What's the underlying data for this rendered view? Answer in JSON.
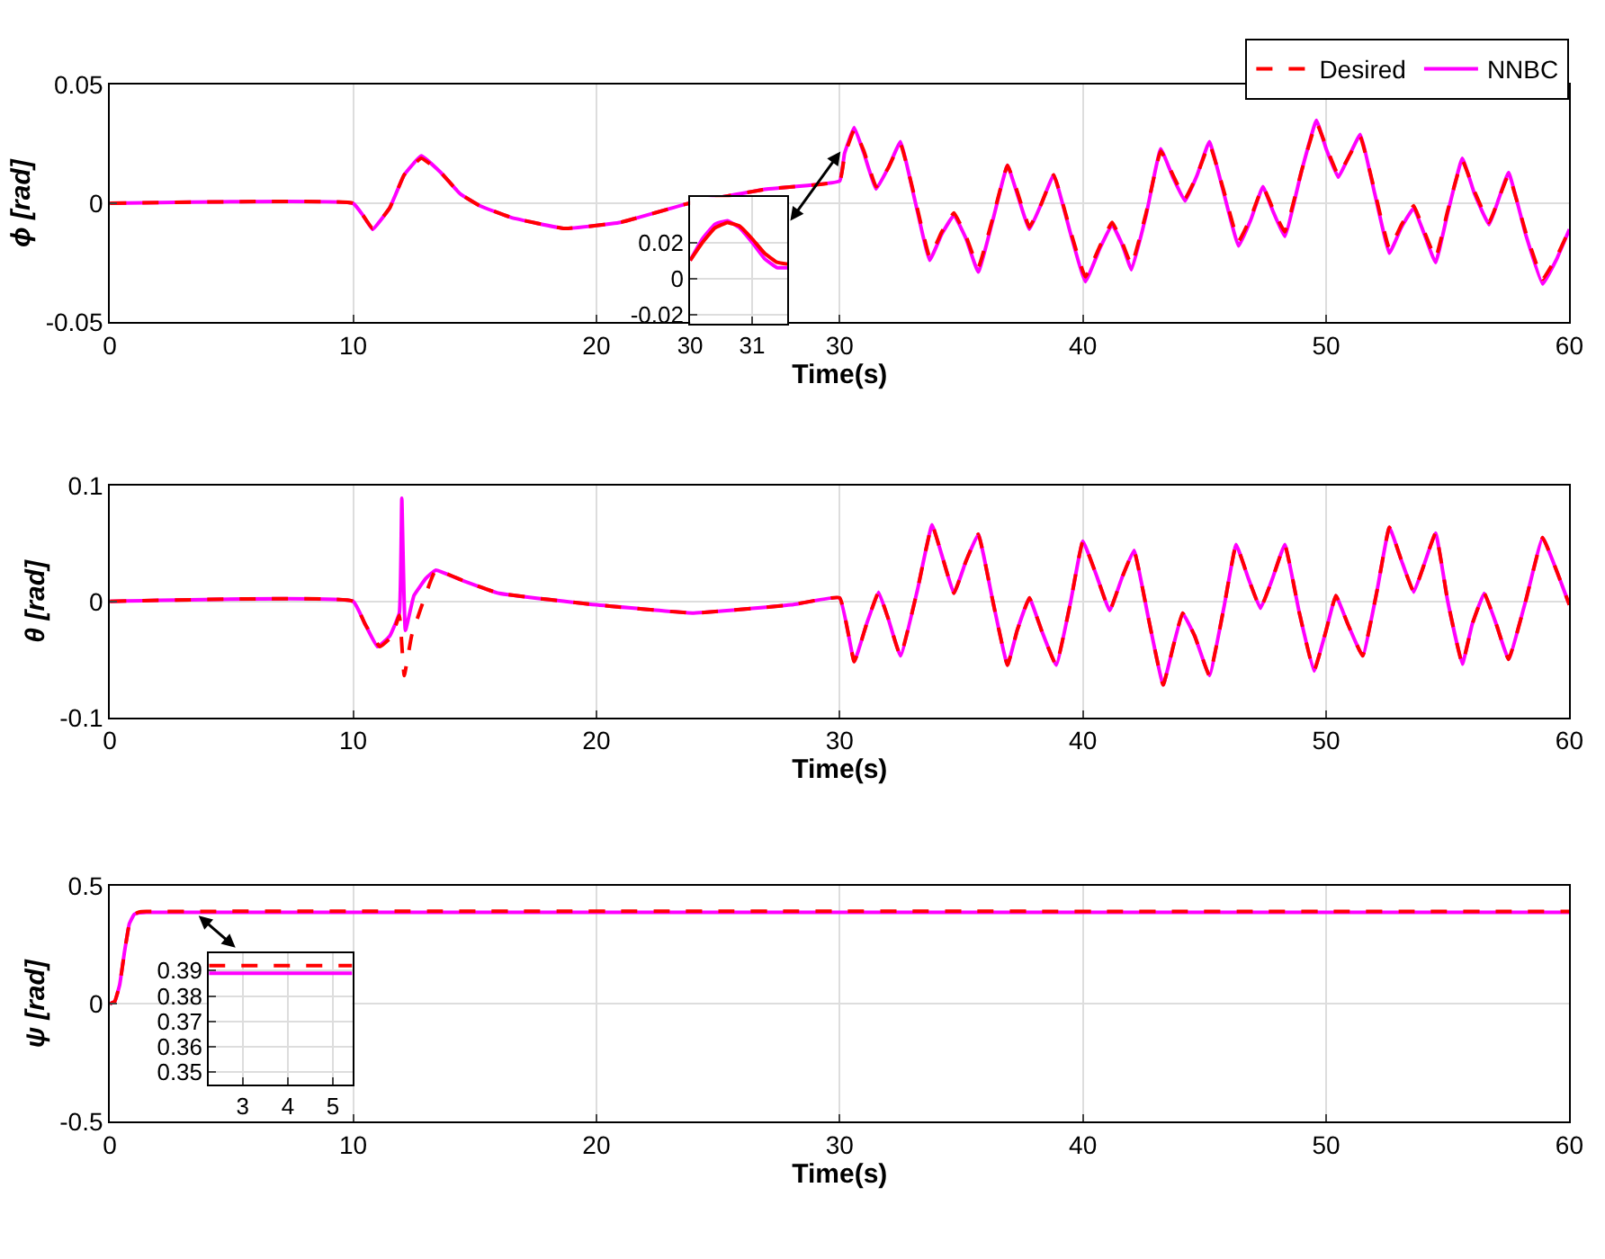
{
  "chart_data": [
    {
      "type": "line",
      "xlabel": "Time(s)",
      "ylabel": "ϕ [rad]",
      "xlim": [
        0,
        60
      ],
      "xticks": [
        0,
        10,
        20,
        30,
        40,
        50,
        60
      ],
      "ylim": [
        -0.05,
        0.05
      ],
      "yticks": [
        -0.05,
        0,
        0.05
      ],
      "grid": true,
      "legend": "top right",
      "x": [
        0,
        10,
        10.4,
        10.8,
        11.5,
        12.1,
        12.8,
        13.6,
        14.4,
        15.2,
        16.5,
        18.7,
        21,
        23.8,
        27,
        30,
        30.2,
        30.6,
        31.0,
        31.5,
        32.0,
        32.5,
        33.1,
        33.7,
        34.2,
        34.7,
        35.2,
        35.7,
        36.3,
        36.9,
        37.3,
        37.8,
        38.3,
        38.8,
        39.5,
        40.1,
        40.7,
        41.2,
        41.6,
        42,
        42.6,
        43.2,
        43.7,
        44.2,
        44.7,
        45.2,
        45.8,
        46.4,
        46.9,
        47.4,
        47.8,
        48.3,
        49.0,
        49.6,
        50.0,
        50.5,
        50.9,
        51.4,
        52.0,
        52.6,
        53.1,
        53.6,
        54.0,
        54.5,
        55.0,
        55.6,
        56.1,
        56.7,
        57.1,
        57.5,
        58.2,
        58.9,
        59.5,
        60
      ],
      "series": [
        {
          "name": "Desired",
          "color": "#ff0000",
          "line_style": "dashed",
          "values": [
            0,
            0,
            -0.005,
            -0.0106,
            -0.002,
            0.012,
            0.019,
            0.013,
            0.004,
            -0.001,
            -0.006,
            -0.0106,
            -0.008,
            0,
            0.006,
            0.0094,
            0.02,
            0.031,
            0.022,
            0.007,
            0.015,
            0.025,
            0.002,
            -0.0225,
            -0.012,
            -0.004,
            -0.014,
            -0.027,
            -0.006,
            0.016,
            0.005,
            -0.01,
            0.0,
            0.012,
            -0.012,
            -0.031,
            -0.018,
            -0.008,
            -0.016,
            -0.026,
            -0.004,
            0.022,
            0.012,
            0.002,
            0.012,
            0.025,
            0.005,
            -0.016,
            -0.006,
            0.007,
            -0.002,
            -0.012,
            0.014,
            0.034,
            0.024,
            0.012,
            0.019,
            0.028,
            0.005,
            -0.019,
            -0.009,
            -0.001,
            -0.011,
            -0.023,
            -0.003,
            0.018,
            0.005,
            -0.008,
            0.002,
            0.012,
            -0.012,
            -0.032,
            -0.022,
            -0.011
          ]
        },
        {
          "name": "NNBC",
          "color": "#ff00ff",
          "line_style": "solid",
          "values": [
            0,
            0,
            -0.005,
            -0.011,
            -0.002,
            0.012,
            0.02,
            0.013,
            0.004,
            -0.001,
            -0.006,
            -0.0106,
            -0.008,
            0,
            0.006,
            0.0094,
            0.021,
            0.032,
            0.021,
            0.006,
            0.015,
            0.026,
            0.001,
            -0.024,
            -0.013,
            -0.005,
            -0.015,
            -0.029,
            -0.007,
            0.016,
            0.004,
            -0.011,
            0.0,
            0.012,
            -0.013,
            -0.033,
            -0.019,
            -0.009,
            -0.017,
            -0.028,
            -0.005,
            0.023,
            0.011,
            0.001,
            0.012,
            0.026,
            0.004,
            -0.018,
            -0.007,
            0.007,
            -0.003,
            -0.014,
            0.014,
            0.035,
            0.023,
            0.011,
            0.019,
            0.029,
            0.004,
            -0.021,
            -0.01,
            -0.002,
            -0.012,
            -0.025,
            -0.004,
            0.019,
            0.004,
            -0.009,
            0.002,
            0.013,
            -0.013,
            -0.034,
            -0.023,
            -0.011
          ]
        }
      ]
    },
    {
      "type": "line",
      "xlim": [
        30,
        31.57
      ],
      "xticks": [
        30,
        31
      ],
      "ylim": [
        -0.025,
        0.045
      ],
      "yticks": [
        -0.02,
        0,
        0.02
      ],
      "grid": true,
      "x": [
        30,
        30.2,
        30.4,
        30.6,
        30.8,
        31.0,
        31.2,
        31.4,
        31.57
      ],
      "series": [
        {
          "color": "#ff0000",
          "line_style": "solid",
          "values": [
            0.01,
            0.02,
            0.028,
            0.031,
            0.029,
            0.022,
            0.014,
            0.009,
            0.008
          ]
        },
        {
          "color": "#ff00ff",
          "line_style": "solid",
          "values": [
            0.01,
            0.022,
            0.03,
            0.032,
            0.028,
            0.02,
            0.011,
            0.006,
            0.006
          ]
        }
      ]
    },
    {
      "type": "line",
      "xlabel": "Time(s)",
      "ylabel": "θ [rad]",
      "xlim": [
        0,
        60
      ],
      "xticks": [
        0,
        10,
        20,
        30,
        40,
        50,
        60
      ],
      "ylim": [
        -0.1,
        0.1
      ],
      "yticks": [
        -0.1,
        0,
        0.1
      ],
      "grid": true,
      "series": [
        {
          "color": "#ff0000",
          "line_style": "dashed",
          "x": [
            0,
            10,
            10.5,
            11.1,
            11.6,
            11.9,
            12.1,
            12.4,
            12.8,
            13.4,
            14.5,
            16,
            20,
            24,
            28,
            30,
            30.6,
            31.1,
            31.6,
            32.0,
            32.5,
            33.2,
            33.8,
            34.2,
            34.7,
            35.2,
            35.7,
            36.3,
            36.9,
            37.3,
            37.8,
            38.3,
            38.9,
            39.5,
            40,
            40.6,
            41.1,
            41.6,
            42.1,
            42.7,
            43.3,
            43.7,
            44.1,
            44.6,
            45.2,
            45.8,
            46.3,
            46.8,
            47.3,
            47.8,
            48.3,
            48.9,
            49.5,
            50,
            50.4,
            50.9,
            51.5,
            52.1,
            52.6,
            53.1,
            53.6,
            54.0,
            54.5,
            55.0,
            55.6,
            56.0,
            56.5,
            57.0,
            57.5,
            58.2,
            58.9,
            59.5,
            60
          ],
          "values": [
            0,
            0,
            -0.02,
            -0.039,
            -0.03,
            -0.012,
            -0.064,
            -0.03,
            -0.005,
            0.027,
            0.018,
            0.007,
            -0.003,
            -0.01,
            -0.003,
            0.003,
            -0.052,
            -0.02,
            0.008,
            -0.015,
            -0.047,
            0.01,
            0.066,
            0.04,
            0.007,
            0.035,
            0.058,
            0,
            -0.055,
            -0.025,
            0.003,
            -0.025,
            -0.055,
            0,
            0.052,
            0.02,
            -0.008,
            0.02,
            0.044,
            -0.015,
            -0.072,
            -0.04,
            -0.01,
            -0.03,
            -0.064,
            -0.005,
            0.049,
            0.02,
            -0.006,
            0.02,
            0.049,
            -0.01,
            -0.06,
            -0.025,
            0.005,
            -0.02,
            -0.047,
            0.01,
            0.064,
            0.035,
            0.008,
            0.03,
            0.059,
            0,
            -0.054,
            -0.02,
            0.007,
            -0.02,
            -0.05,
            0,
            0.055,
            0.025,
            -0.003
          ]
        },
        {
          "color": "#ff00ff",
          "line_style": "solid",
          "x": [
            0,
            10,
            10.5,
            11.0,
            11.5,
            11.9,
            12.0,
            12.15,
            12.5,
            13.0,
            13.4,
            14.5,
            16,
            20,
            24,
            28,
            30,
            30.6,
            31.1,
            31.6,
            32.0,
            32.5,
            33.2,
            33.8,
            34.2,
            34.7,
            35.2,
            35.7,
            36.3,
            36.9,
            37.3,
            37.8,
            38.3,
            38.9,
            39.5,
            40,
            40.6,
            41.1,
            41.6,
            42.1,
            42.7,
            43.3,
            43.7,
            44.1,
            44.6,
            45.2,
            45.8,
            46.3,
            46.8,
            47.3,
            47.8,
            48.3,
            48.9,
            49.5,
            50,
            50.4,
            50.9,
            51.5,
            52.1,
            52.6,
            53.1,
            53.6,
            54.0,
            54.5,
            55.0,
            55.6,
            56.0,
            56.5,
            57.0,
            57.5,
            58.2,
            58.9,
            59.5,
            60
          ],
          "values": [
            0,
            0,
            -0.02,
            -0.039,
            -0.03,
            -0.01,
            0.089,
            -0.025,
            0.005,
            0.02,
            0.027,
            0.018,
            0.007,
            -0.003,
            -0.01,
            -0.003,
            0.003,
            -0.052,
            -0.02,
            0.008,
            -0.015,
            -0.047,
            0.01,
            0.066,
            0.04,
            0.007,
            0.035,
            0.058,
            0,
            -0.055,
            -0.025,
            0.003,
            -0.025,
            -0.055,
            0,
            0.052,
            0.02,
            -0.008,
            0.02,
            0.044,
            -0.015,
            -0.072,
            -0.04,
            -0.01,
            -0.03,
            -0.064,
            -0.005,
            0.049,
            0.02,
            -0.006,
            0.02,
            0.049,
            -0.01,
            -0.06,
            -0.025,
            0.005,
            -0.02,
            -0.047,
            0.01,
            0.064,
            0.035,
            0.008,
            0.03,
            0.059,
            0,
            -0.054,
            -0.02,
            0.007,
            -0.02,
            -0.05,
            0,
            0.055,
            0.025,
            -0.003
          ]
        }
      ]
    },
    {
      "type": "line",
      "xlabel": "Time(s)",
      "ylabel": "ψ [rad]",
      "xlim": [
        0,
        60
      ],
      "xticks": [
        0,
        10,
        20,
        30,
        40,
        50,
        60
      ],
      "ylim": [
        -0.5,
        0.5
      ],
      "yticks": [
        -0.5,
        0,
        0.5
      ],
      "grid": true,
      "x": [
        0,
        0.2,
        0.4,
        0.6,
        0.8,
        1.0,
        1.2,
        1.5,
        60
      ],
      "series": [
        {
          "color": "#ff0000",
          "line_style": "dashed",
          "values": [
            0,
            0.01,
            0.08,
            0.22,
            0.34,
            0.38,
            0.39,
            0.392,
            0.392
          ]
        },
        {
          "color": "#ff00ff",
          "line_style": "solid",
          "values": [
            0,
            0.01,
            0.08,
            0.22,
            0.34,
            0.38,
            0.387,
            0.389,
            0.389
          ]
        }
      ]
    },
    {
      "type": "line",
      "xlim": [
        2.25,
        5.43
      ],
      "xticks": [
        3,
        4,
        5
      ],
      "ylim": [
        0.345,
        0.397
      ],
      "yticks": [
        0.35,
        0.36,
        0.37,
        0.38,
        0.39
      ],
      "grid": true,
      "x": [
        2.25,
        5.43
      ],
      "series": [
        {
          "color": "#ff0000",
          "line_style": "dashed",
          "values": [
            0.392,
            0.392
          ]
        },
        {
          "color": "#ff00ff",
          "line_style": "solid",
          "values": [
            0.389,
            0.389
          ]
        }
      ]
    }
  ]
}
